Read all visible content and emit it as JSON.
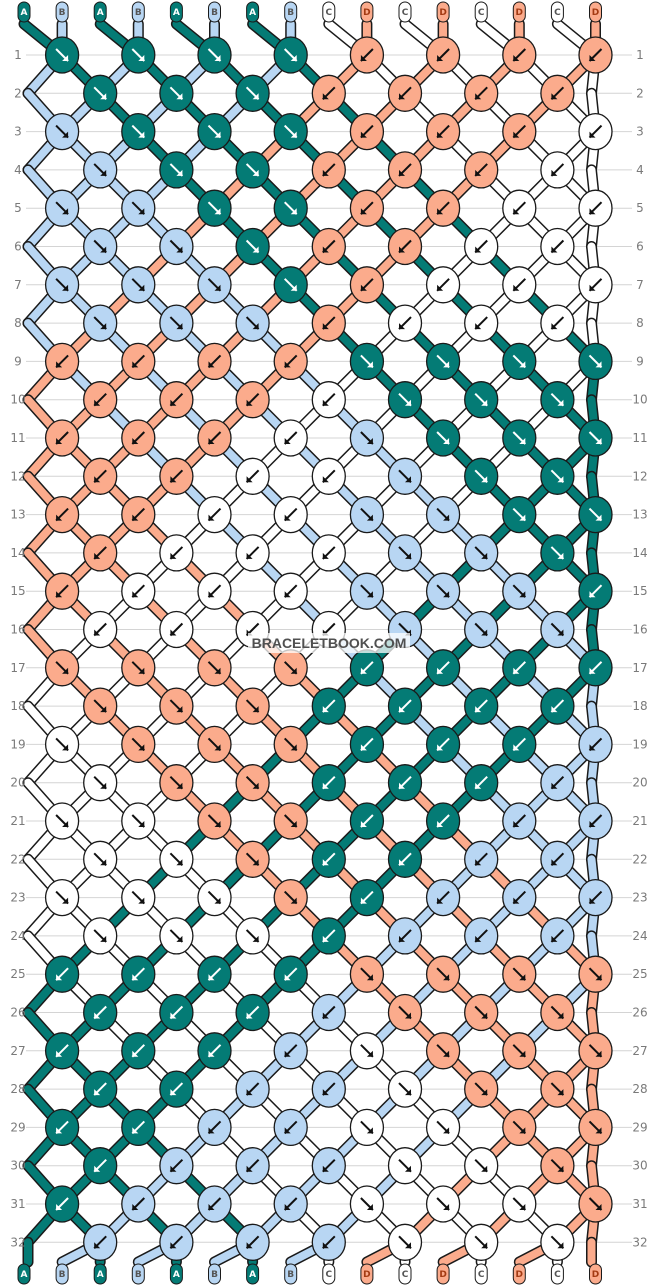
{
  "brand": "BRACELETBOOK.COM",
  "colors": {
    "A": "#047b75",
    "B": "#b8d6f3",
    "C": "#ffffff",
    "D": "#fbab8c"
  },
  "strands": [
    "A",
    "B",
    "A",
    "B",
    "A",
    "B",
    "A",
    "B",
    "C",
    "D",
    "C",
    "D",
    "C",
    "D",
    "C",
    "D"
  ],
  "row_numbers": [
    "1",
    "2",
    "3",
    "4",
    "5",
    "6",
    "7",
    "8",
    "9",
    "10",
    "11",
    "12",
    "13",
    "14",
    "15",
    "16",
    "17",
    "18",
    "19",
    "20",
    "21",
    "22",
    "23",
    "24",
    "25",
    "26",
    "27",
    "28",
    "29",
    "30",
    "31",
    "32"
  ],
  "rows": [
    {
      "knots": [
        {
          "c": "A",
          "d": "R"
        },
        {
          "c": "A",
          "d": "R"
        },
        {
          "c": "A",
          "d": "R"
        },
        {
          "c": "A",
          "d": "R"
        },
        {
          "c": "D",
          "d": "L"
        },
        {
          "c": "D",
          "d": "L"
        },
        {
          "c": "D",
          "d": "L"
        },
        {
          "c": "D",
          "d": "L"
        }
      ]
    },
    {
      "knots": [
        {
          "c": "A",
          "d": "R"
        },
        {
          "c": "A",
          "d": "R"
        },
        {
          "c": "A",
          "d": "R"
        },
        {
          "c": "D",
          "d": "L"
        },
        {
          "c": "D",
          "d": "L"
        },
        {
          "c": "D",
          "d": "L"
        },
        {
          "c": "D",
          "d": "L"
        }
      ]
    },
    {
      "knots": [
        {
          "c": "B",
          "d": "R"
        },
        {
          "c": "A",
          "d": "R"
        },
        {
          "c": "A",
          "d": "R"
        },
        {
          "c": "A",
          "d": "R"
        },
        {
          "c": "D",
          "d": "L"
        },
        {
          "c": "D",
          "d": "L"
        },
        {
          "c": "D",
          "d": "L"
        },
        {
          "c": "C",
          "d": "L"
        }
      ]
    },
    {
      "knots": [
        {
          "c": "B",
          "d": "R"
        },
        {
          "c": "A",
          "d": "R"
        },
        {
          "c": "A",
          "d": "R"
        },
        {
          "c": "D",
          "d": "L"
        },
        {
          "c": "D",
          "d": "L"
        },
        {
          "c": "D",
          "d": "L"
        },
        {
          "c": "C",
          "d": "L"
        }
      ]
    },
    {
      "knots": [
        {
          "c": "B",
          "d": "R"
        },
        {
          "c": "B",
          "d": "R"
        },
        {
          "c": "A",
          "d": "R"
        },
        {
          "c": "A",
          "d": "R"
        },
        {
          "c": "D",
          "d": "L"
        },
        {
          "c": "D",
          "d": "L"
        },
        {
          "c": "C",
          "d": "L"
        },
        {
          "c": "C",
          "d": "L"
        }
      ]
    },
    {
      "knots": [
        {
          "c": "B",
          "d": "R"
        },
        {
          "c": "B",
          "d": "R"
        },
        {
          "c": "A",
          "d": "R"
        },
        {
          "c": "D",
          "d": "L"
        },
        {
          "c": "D",
          "d": "L"
        },
        {
          "c": "C",
          "d": "L"
        },
        {
          "c": "C",
          "d": "L"
        }
      ]
    },
    {
      "knots": [
        {
          "c": "B",
          "d": "R"
        },
        {
          "c": "B",
          "d": "R"
        },
        {
          "c": "B",
          "d": "R"
        },
        {
          "c": "A",
          "d": "R"
        },
        {
          "c": "D",
          "d": "L"
        },
        {
          "c": "C",
          "d": "L"
        },
        {
          "c": "C",
          "d": "L"
        },
        {
          "c": "C",
          "d": "L"
        }
      ]
    },
    {
      "knots": [
        {
          "c": "B",
          "d": "R"
        },
        {
          "c": "B",
          "d": "R"
        },
        {
          "c": "B",
          "d": "R"
        },
        {
          "c": "D",
          "d": "L"
        },
        {
          "c": "C",
          "d": "L"
        },
        {
          "c": "C",
          "d": "L"
        },
        {
          "c": "C",
          "d": "L"
        }
      ]
    },
    {
      "knots": [
        {
          "c": "D",
          "d": "L"
        },
        {
          "c": "D",
          "d": "L"
        },
        {
          "c": "D",
          "d": "L"
        },
        {
          "c": "D",
          "d": "L"
        },
        {
          "c": "A",
          "d": "R"
        },
        {
          "c": "A",
          "d": "R"
        },
        {
          "c": "A",
          "d": "R"
        },
        {
          "c": "A",
          "d": "R"
        }
      ]
    },
    {
      "knots": [
        {
          "c": "D",
          "d": "L"
        },
        {
          "c": "D",
          "d": "L"
        },
        {
          "c": "D",
          "d": "L"
        },
        {
          "c": "C",
          "d": "L"
        },
        {
          "c": "A",
          "d": "R"
        },
        {
          "c": "A",
          "d": "R"
        },
        {
          "c": "A",
          "d": "R"
        }
      ]
    },
    {
      "knots": [
        {
          "c": "D",
          "d": "L"
        },
        {
          "c": "D",
          "d": "L"
        },
        {
          "c": "D",
          "d": "L"
        },
        {
          "c": "C",
          "d": "L"
        },
        {
          "c": "B",
          "d": "R"
        },
        {
          "c": "A",
          "d": "R"
        },
        {
          "c": "A",
          "d": "R"
        },
        {
          "c": "A",
          "d": "R"
        }
      ]
    },
    {
      "knots": [
        {
          "c": "D",
          "d": "L"
        },
        {
          "c": "D",
          "d": "L"
        },
        {
          "c": "C",
          "d": "L"
        },
        {
          "c": "C",
          "d": "L"
        },
        {
          "c": "B",
          "d": "R"
        },
        {
          "c": "A",
          "d": "R"
        },
        {
          "c": "A",
          "d": "R"
        }
      ]
    },
    {
      "knots": [
        {
          "c": "D",
          "d": "L"
        },
        {
          "c": "D",
          "d": "L"
        },
        {
          "c": "C",
          "d": "L"
        },
        {
          "c": "C",
          "d": "L"
        },
        {
          "c": "B",
          "d": "R"
        },
        {
          "c": "B",
          "d": "R"
        },
        {
          "c": "A",
          "d": "R"
        },
        {
          "c": "A",
          "d": "R"
        }
      ]
    },
    {
      "knots": [
        {
          "c": "D",
          "d": "L"
        },
        {
          "c": "C",
          "d": "L"
        },
        {
          "c": "C",
          "d": "L"
        },
        {
          "c": "C",
          "d": "L"
        },
        {
          "c": "B",
          "d": "R"
        },
        {
          "c": "B",
          "d": "R"
        },
        {
          "c": "A",
          "d": "R"
        }
      ]
    },
    {
      "knots": [
        {
          "c": "D",
          "d": "L"
        },
        {
          "c": "C",
          "d": "L"
        },
        {
          "c": "C",
          "d": "L"
        },
        {
          "c": "C",
          "d": "L"
        },
        {
          "c": "B",
          "d": "R"
        },
        {
          "c": "B",
          "d": "R"
        },
        {
          "c": "B",
          "d": "R"
        },
        {
          "c": "A",
          "d": "L"
        }
      ]
    },
    {
      "knots": [
        {
          "c": "C",
          "d": "L"
        },
        {
          "c": "C",
          "d": "L"
        },
        {
          "c": "C",
          "d": "L"
        },
        {
          "c": "C",
          "d": "L"
        },
        {
          "c": "B",
          "d": "R"
        },
        {
          "c": "B",
          "d": "R"
        },
        {
          "c": "B",
          "d": "R"
        }
      ]
    },
    {
      "knots": [
        {
          "c": "D",
          "d": "R"
        },
        {
          "c": "D",
          "d": "R"
        },
        {
          "c": "D",
          "d": "R"
        },
        {
          "c": "D",
          "d": "R"
        },
        {
          "c": "A",
          "d": "L"
        },
        {
          "c": "A",
          "d": "L"
        },
        {
          "c": "A",
          "d": "L"
        },
        {
          "c": "A",
          "d": "L"
        }
      ]
    },
    {
      "knots": [
        {
          "c": "D",
          "d": "R"
        },
        {
          "c": "D",
          "d": "R"
        },
        {
          "c": "D",
          "d": "R"
        },
        {
          "c": "A",
          "d": "L"
        },
        {
          "c": "A",
          "d": "L"
        },
        {
          "c": "A",
          "d": "L"
        },
        {
          "c": "A",
          "d": "L"
        }
      ]
    },
    {
      "knots": [
        {
          "c": "C",
          "d": "R"
        },
        {
          "c": "D",
          "d": "R"
        },
        {
          "c": "D",
          "d": "R"
        },
        {
          "c": "D",
          "d": "R"
        },
        {
          "c": "A",
          "d": "L"
        },
        {
          "c": "A",
          "d": "L"
        },
        {
          "c": "A",
          "d": "L"
        },
        {
          "c": "B",
          "d": "L"
        }
      ]
    },
    {
      "knots": [
        {
          "c": "C",
          "d": "R"
        },
        {
          "c": "D",
          "d": "R"
        },
        {
          "c": "D",
          "d": "R"
        },
        {
          "c": "A",
          "d": "L"
        },
        {
          "c": "A",
          "d": "L"
        },
        {
          "c": "A",
          "d": "L"
        },
        {
          "c": "B",
          "d": "L"
        }
      ]
    },
    {
      "knots": [
        {
          "c": "C",
          "d": "R"
        },
        {
          "c": "C",
          "d": "R"
        },
        {
          "c": "D",
          "d": "R"
        },
        {
          "c": "D",
          "d": "R"
        },
        {
          "c": "A",
          "d": "L"
        },
        {
          "c": "A",
          "d": "L"
        },
        {
          "c": "B",
          "d": "L"
        },
        {
          "c": "B",
          "d": "L"
        }
      ]
    },
    {
      "knots": [
        {
          "c": "C",
          "d": "R"
        },
        {
          "c": "C",
          "d": "R"
        },
        {
          "c": "D",
          "d": "R"
        },
        {
          "c": "A",
          "d": "L"
        },
        {
          "c": "A",
          "d": "L"
        },
        {
          "c": "B",
          "d": "L"
        },
        {
          "c": "B",
          "d": "L"
        }
      ]
    },
    {
      "knots": [
        {
          "c": "C",
          "d": "R"
        },
        {
          "c": "C",
          "d": "R"
        },
        {
          "c": "C",
          "d": "R"
        },
        {
          "c": "D",
          "d": "R"
        },
        {
          "c": "A",
          "d": "L"
        },
        {
          "c": "B",
          "d": "L"
        },
        {
          "c": "B",
          "d": "L"
        },
        {
          "c": "B",
          "d": "L"
        }
      ]
    },
    {
      "knots": [
        {
          "c": "C",
          "d": "R"
        },
        {
          "c": "C",
          "d": "R"
        },
        {
          "c": "C",
          "d": "R"
        },
        {
          "c": "A",
          "d": "L"
        },
        {
          "c": "B",
          "d": "L"
        },
        {
          "c": "B",
          "d": "L"
        },
        {
          "c": "B",
          "d": "L"
        }
      ]
    },
    {
      "knots": [
        {
          "c": "A",
          "d": "L"
        },
        {
          "c": "A",
          "d": "L"
        },
        {
          "c": "A",
          "d": "L"
        },
        {
          "c": "A",
          "d": "L"
        },
        {
          "c": "D",
          "d": "R"
        },
        {
          "c": "D",
          "d": "R"
        },
        {
          "c": "D",
          "d": "R"
        },
        {
          "c": "D",
          "d": "R"
        }
      ]
    },
    {
      "knots": [
        {
          "c": "A",
          "d": "L"
        },
        {
          "c": "A",
          "d": "L"
        },
        {
          "c": "A",
          "d": "L"
        },
        {
          "c": "B",
          "d": "L"
        },
        {
          "c": "D",
          "d": "R"
        },
        {
          "c": "D",
          "d": "R"
        },
        {
          "c": "D",
          "d": "R"
        }
      ]
    },
    {
      "knots": [
        {
          "c": "A",
          "d": "L"
        },
        {
          "c": "A",
          "d": "L"
        },
        {
          "c": "A",
          "d": "L"
        },
        {
          "c": "B",
          "d": "L"
        },
        {
          "c": "C",
          "d": "R"
        },
        {
          "c": "D",
          "d": "R"
        },
        {
          "c": "D",
          "d": "R"
        },
        {
          "c": "D",
          "d": "R"
        }
      ]
    },
    {
      "knots": [
        {
          "c": "A",
          "d": "L"
        },
        {
          "c": "A",
          "d": "L"
        },
        {
          "c": "B",
          "d": "L"
        },
        {
          "c": "B",
          "d": "L"
        },
        {
          "c": "C",
          "d": "R"
        },
        {
          "c": "D",
          "d": "R"
        },
        {
          "c": "D",
          "d": "R"
        }
      ]
    },
    {
      "knots": [
        {
          "c": "A",
          "d": "L"
        },
        {
          "c": "A",
          "d": "L"
        },
        {
          "c": "B",
          "d": "L"
        },
        {
          "c": "B",
          "d": "L"
        },
        {
          "c": "C",
          "d": "R"
        },
        {
          "c": "C",
          "d": "R"
        },
        {
          "c": "D",
          "d": "R"
        },
        {
          "c": "D",
          "d": "R"
        }
      ]
    },
    {
      "knots": [
        {
          "c": "A",
          "d": "L"
        },
        {
          "c": "B",
          "d": "L"
        },
        {
          "c": "B",
          "d": "L"
        },
        {
          "c": "B",
          "d": "L"
        },
        {
          "c": "C",
          "d": "R"
        },
        {
          "c": "C",
          "d": "R"
        },
        {
          "c": "D",
          "d": "R"
        }
      ]
    },
    {
      "knots": [
        {
          "c": "A",
          "d": "L"
        },
        {
          "c": "B",
          "d": "L"
        },
        {
          "c": "B",
          "d": "L"
        },
        {
          "c": "B",
          "d": "L"
        },
        {
          "c": "C",
          "d": "R"
        },
        {
          "c": "C",
          "d": "R"
        },
        {
          "c": "C",
          "d": "R"
        },
        {
          "c": "D",
          "d": "R"
        }
      ]
    },
    {
      "knots": [
        {
          "c": "B",
          "d": "L"
        },
        {
          "c": "B",
          "d": "L"
        },
        {
          "c": "B",
          "d": "L"
        },
        {
          "c": "B",
          "d": "L"
        },
        {
          "c": "C",
          "d": "R"
        },
        {
          "c": "C",
          "d": "R"
        },
        {
          "c": "C",
          "d": "R"
        }
      ]
    }
  ]
}
